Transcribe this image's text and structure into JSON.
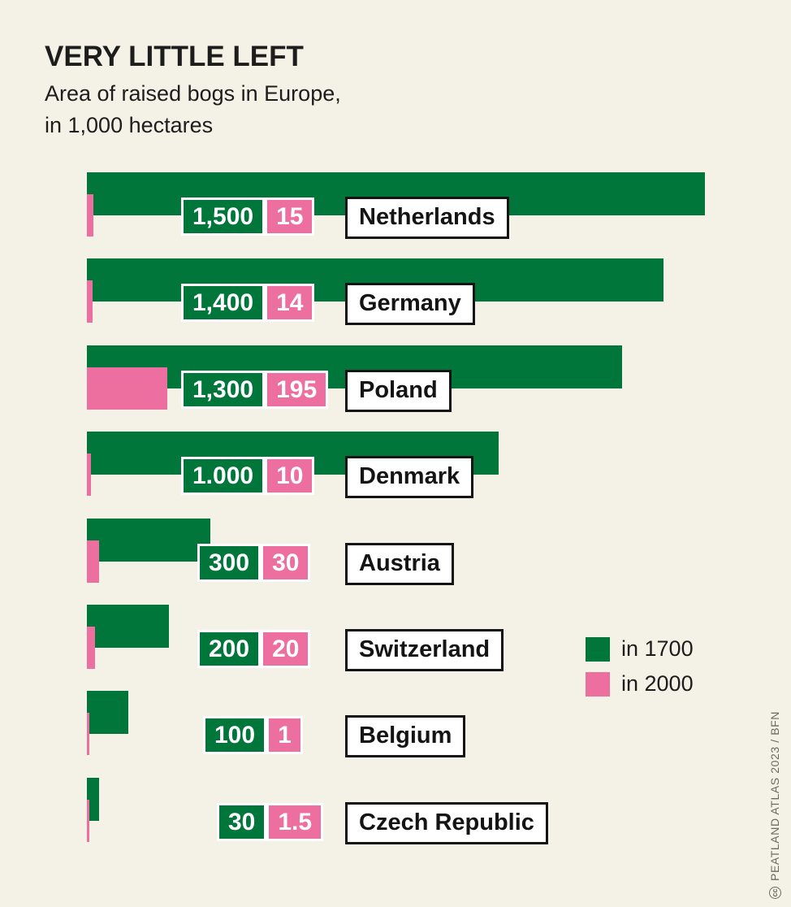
{
  "header": {
    "title": "VERY LITTLE LEFT",
    "subtitle_line1": "Area of raised bogs in Europe,",
    "subtitle_line2": "in 1,000 hectares"
  },
  "legend": {
    "items": [
      {
        "label": "in 1700",
        "color": "#00763b"
      },
      {
        "label": "in 2000",
        "color": "#ed6fa0"
      }
    ]
  },
  "credit": {
    "symbol": "cc",
    "text": "PEATLAND ATLAS 2023 / BFN"
  },
  "colors": {
    "background": "#f4f1e7",
    "green": "#00763b",
    "pink": "#ed6fa0",
    "label_box_border": "#141414",
    "text": "#1d1d1b"
  },
  "chart_data": {
    "type": "bar",
    "orientation": "horizontal",
    "title": "VERY LITTLE LEFT",
    "subtitle": "Area of raised bogs in Europe, in 1,000 hectares",
    "unit": "1,000 hectares",
    "legend_position": "right",
    "grid": false,
    "categories": [
      "Netherlands",
      "Germany",
      "Poland",
      "Denmark",
      "Austria",
      "Switzerland",
      "Belgium",
      "Czech Republic"
    ],
    "series": [
      {
        "name": "in 1700",
        "color": "#00763b",
        "values": [
          1500,
          1400,
          1300,
          1000,
          300,
          200,
          100,
          30
        ],
        "value_labels": [
          "1,500",
          "1,400",
          "1,300",
          "1.000",
          "300",
          "200",
          "100",
          "30"
        ]
      },
      {
        "name": "in 2000",
        "color": "#ed6fa0",
        "values": [
          15,
          14,
          195,
          10,
          30,
          20,
          1,
          1.5
        ],
        "value_labels": [
          "15",
          "14",
          "195",
          "10",
          "30",
          "20",
          "1",
          "1.5"
        ]
      }
    ]
  }
}
